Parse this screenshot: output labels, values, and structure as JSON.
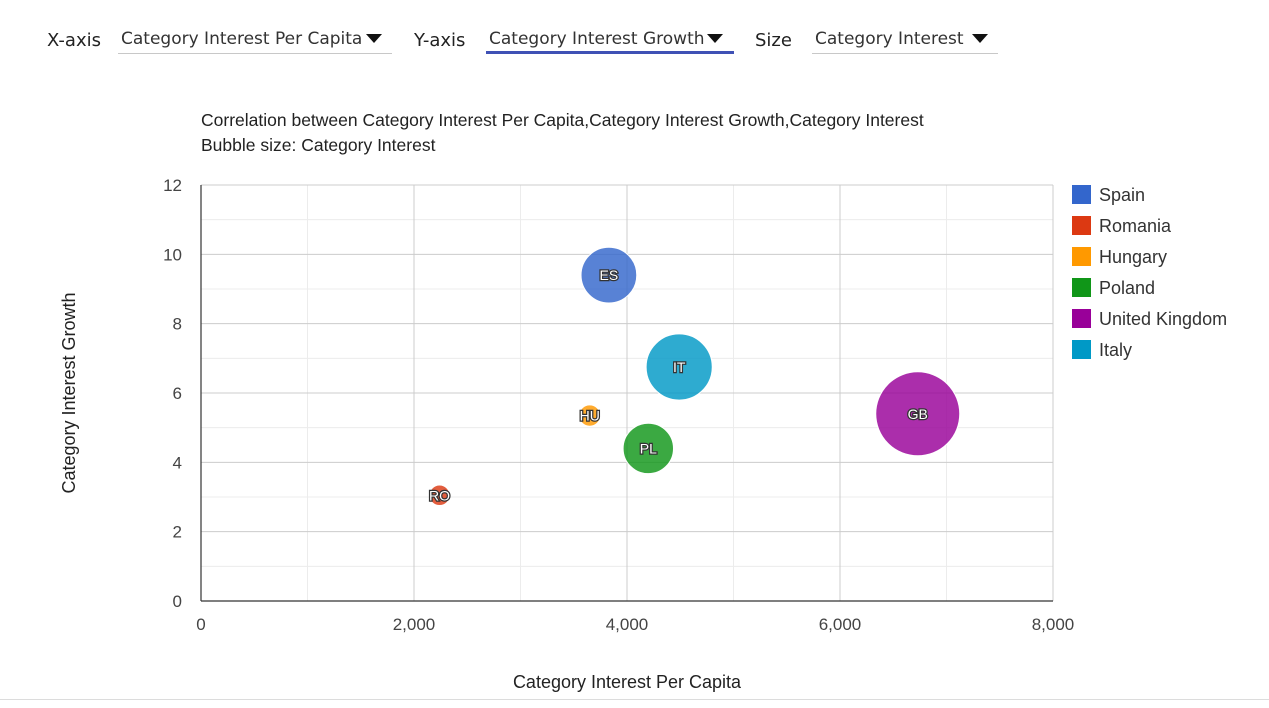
{
  "controls": {
    "x_label": "X-axis",
    "x_value": "Category Interest Per Capita",
    "y_label": "Y-axis",
    "y_value": "Category Interest Growth",
    "size_label": "Size",
    "size_value": "Category Interest"
  },
  "chart_data": {
    "type": "scatter",
    "subtype": "bubble",
    "title": "Correlation between Category Interest Per Capita,Category Interest Growth,Category Interest",
    "subtitle": "Bubble size: Category Interest",
    "xlabel": "Category Interest Per Capita",
    "ylabel": "Category Interest Growth",
    "xlim": [
      0,
      8000
    ],
    "ylim": [
      0,
      12
    ],
    "x_ticks": [
      0,
      2000,
      4000,
      6000,
      8000
    ],
    "x_tick_labels": [
      "0",
      "2,000",
      "4,000",
      "6,000",
      "8,000"
    ],
    "y_ticks": [
      0,
      2,
      4,
      6,
      8,
      10,
      12
    ],
    "y_tick_labels": [
      "0",
      "2",
      "4",
      "6",
      "8",
      "10",
      "12"
    ],
    "grid": true,
    "legend_position": "right",
    "series": [
      {
        "name": "Spain",
        "label": "ES",
        "color": "#3366cc",
        "x": 3830,
        "y": 9.4,
        "size": 4.4
      },
      {
        "name": "Romania",
        "label": "RO",
        "color": "#dc3912",
        "x": 2240,
        "y": 3.05,
        "size": 0.6
      },
      {
        "name": "Hungary",
        "label": "HU",
        "color": "#ff9900",
        "x": 3650,
        "y": 5.35,
        "size": 0.65
      },
      {
        "name": "Poland",
        "label": "PL",
        "color": "#109618",
        "x": 4200,
        "y": 4.4,
        "size": 3.6
      },
      {
        "name": "United Kingdom",
        "label": "GB",
        "color": "#990099",
        "x": 6730,
        "y": 5.4,
        "size": 10.0
      },
      {
        "name": "Italy",
        "label": "IT",
        "color": "#0099c6",
        "x": 4490,
        "y": 6.75,
        "size": 6.2
      }
    ]
  }
}
